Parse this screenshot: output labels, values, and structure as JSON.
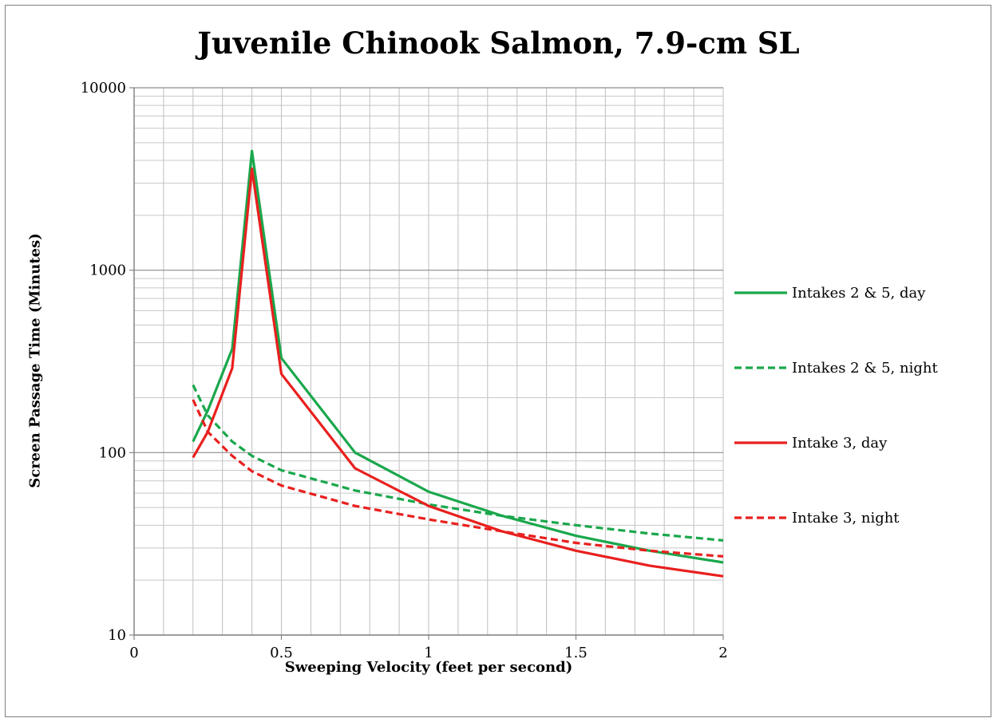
{
  "chart_data": {
    "type": "line",
    "title": "Juvenile Chinook Salmon, 7.9-cm SL",
    "xlabel": "Sweeping Velocity (feet per second)",
    "ylabel": "Screen Passage Time (Minutes)",
    "xlim": [
      0,
      2
    ],
    "ylim": [
      10,
      10000
    ],
    "yscale": "log",
    "xticks": [
      "0",
      "0.5",
      "1",
      "1.5",
      "2"
    ],
    "yticks": [
      "10",
      "100",
      "1000",
      "10000"
    ],
    "grid": true,
    "legend_position": "right",
    "series": [
      {
        "name": "Intakes 2 & 5, day",
        "color": "#1aa74c",
        "dash": "solid",
        "x": [
          0.2,
          0.25,
          0.333,
          0.4,
          0.5,
          0.75,
          1.0,
          1.25,
          1.5,
          1.75,
          2.0
        ],
        "y": [
          115,
          170,
          370,
          4500,
          330,
          100,
          61,
          45,
          35,
          29,
          25
        ]
      },
      {
        "name": "Intakes 2 & 5, night",
        "color": "#1aa74c",
        "dash": "dashed",
        "x": [
          0.2,
          0.25,
          0.333,
          0.4,
          0.5,
          0.75,
          1.0,
          1.25,
          1.5,
          1.75,
          2.0
        ],
        "y": [
          235,
          160,
          115,
          96,
          80,
          62,
          52,
          45,
          40,
          36,
          33
        ]
      },
      {
        "name": "Intake 3, day",
        "color": "#e8201e",
        "dash": "solid",
        "x": [
          0.2,
          0.25,
          0.333,
          0.4,
          0.5,
          0.75,
          1.0,
          1.25,
          1.5,
          1.75,
          2.0
        ],
        "y": [
          94,
          130,
          290,
          3600,
          270,
          82,
          51,
          37,
          29,
          24,
          21
        ]
      },
      {
        "name": "Intake 3, night",
        "color": "#e8201e",
        "dash": "dashed",
        "x": [
          0.2,
          0.25,
          0.333,
          0.4,
          0.5,
          0.75,
          1.0,
          1.25,
          1.5,
          1.75,
          2.0
        ],
        "y": [
          195,
          130,
          96,
          79,
          66,
          51,
          43,
          37,
          32,
          29,
          27
        ]
      }
    ]
  }
}
